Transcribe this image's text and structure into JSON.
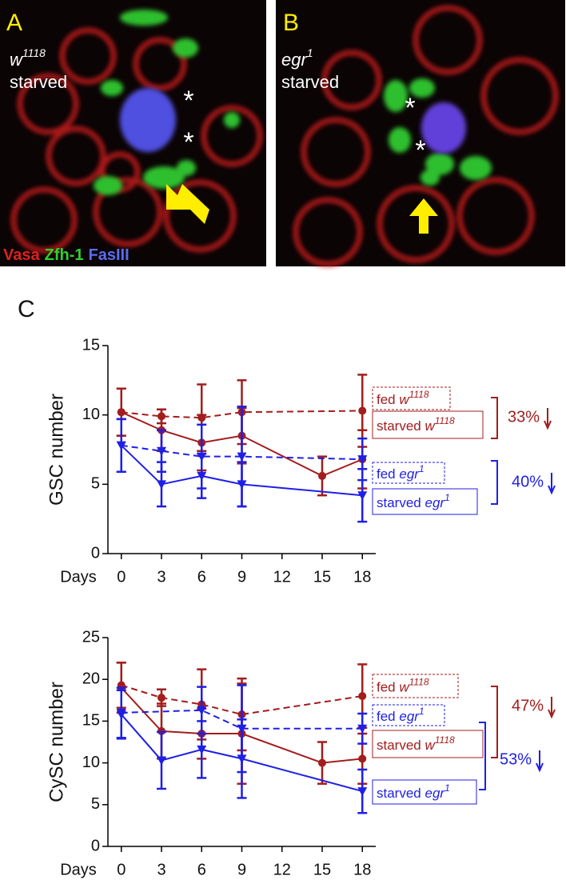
{
  "panels": [
    {
      "label": "A",
      "genotype": "w",
      "allele": "1118",
      "condition": "starved",
      "markers": [
        "Vasa",
        "Zfh-1",
        "FasIII"
      ],
      "asterisks": [
        "*",
        "*"
      ]
    },
    {
      "label": "B",
      "genotype": "egr",
      "allele": "1",
      "condition": "starved",
      "asterisks": [
        "*",
        "*"
      ]
    }
  ],
  "panel_c_label": "C",
  "chart_data": [
    {
      "type": "line",
      "y_label": "GSC number",
      "x_label": "Days",
      "xlim": [
        -1,
        19
      ],
      "xticks": [
        0,
        3,
        6,
        9,
        12,
        15,
        18
      ],
      "ylim": [
        0,
        15
      ],
      "yticks": [
        0,
        5,
        10,
        15
      ],
      "series": [
        {
          "name": [
            "fed ",
            "w",
            "1118"
          ],
          "color": "#a31d1d",
          "dashed": true,
          "marker": "circle",
          "x": [
            0,
            3,
            6,
            9,
            18
          ],
          "values": [
            10.2,
            9.9,
            9.8,
            10.2,
            10.3
          ],
          "errors": [
            1.7,
            0.5,
            2.4,
            2.3,
            2.6
          ]
        },
        {
          "name": [
            "starved ",
            "w",
            "1118"
          ],
          "color": "#a31d1d",
          "dashed": false,
          "marker": "circle",
          "x": [
            0,
            3,
            6,
            9,
            15,
            18
          ],
          "values": [
            10.2,
            8.9,
            8.0,
            8.5,
            5.6,
            6.8
          ],
          "errors": [
            1.7,
            1.5,
            2.0,
            2.0,
            1.4,
            2.1
          ]
        },
        {
          "name": [
            "fed ",
            "egr",
            "1"
          ],
          "color": "#1f1fe6",
          "dashed": true,
          "marker": "triangle",
          "x": [
            0,
            3,
            6,
            9,
            18
          ],
          "values": [
            7.8,
            7.4,
            7.0,
            7.0,
            6.8
          ],
          "errors": [
            1.9,
            1.5,
            2.3,
            3.6,
            1.5
          ]
        },
        {
          "name": [
            "starved ",
            "egr",
            "1"
          ],
          "color": "#1f1fe6",
          "dashed": false,
          "marker": "triangle",
          "x": [
            0,
            3,
            6,
            9,
            18
          ],
          "values": [
            7.8,
            5.0,
            5.6,
            5.0,
            4.2
          ],
          "errors": [
            1.9,
            1.6,
            1.6,
            1.6,
            1.9
          ]
        }
      ],
      "annotations": [
        {
          "text": "33%",
          "color": "#a31d1d"
        },
        {
          "text": "40%",
          "color": "#1f1fe6"
        }
      ]
    },
    {
      "type": "line",
      "y_label": "CySC number",
      "x_label": "Days",
      "xlim": [
        -1,
        19
      ],
      "xticks": [
        0,
        3,
        6,
        9,
        12,
        15,
        18
      ],
      "ylim": [
        0,
        25
      ],
      "yticks": [
        0,
        5,
        10,
        15,
        20,
        25
      ],
      "series": [
        {
          "name": [
            "fed ",
            "w",
            "1118"
          ],
          "color": "#a31d1d",
          "dashed": true,
          "marker": "circle",
          "x": [
            0,
            3,
            6,
            9,
            18
          ],
          "values": [
            19.3,
            17.8,
            17.0,
            15.8,
            18.0
          ],
          "errors": [
            2.7,
            1.0,
            4.2,
            4.3,
            3.8
          ]
        },
        {
          "name": [
            "starved ",
            "w",
            "1118"
          ],
          "color": "#a31d1d",
          "dashed": false,
          "marker": "circle",
          "x": [
            0,
            3,
            6,
            9,
            15,
            18
          ],
          "values": [
            19.0,
            13.8,
            13.5,
            13.5,
            10.0,
            10.5
          ],
          "errors": [
            3.0,
            3.3,
            3.0,
            6.0,
            2.5,
            3.0
          ]
        },
        {
          "name": [
            "fed ",
            "egr",
            "1"
          ],
          "color": "#1f1fe6",
          "dashed": true,
          "marker": "triangle",
          "x": [
            0,
            6,
            9,
            18
          ],
          "values": [
            16.0,
            16.3,
            14.1,
            14.1
          ],
          "errors": [
            3.0,
            2.8,
            5.2,
            1.8
          ]
        },
        {
          "name": [
            "starved ",
            "egr",
            "1"
          ],
          "color": "#1f1fe6",
          "dashed": false,
          "marker": "triangle",
          "x": [
            0,
            3,
            6,
            9,
            18
          ],
          "values": [
            15.8,
            10.3,
            11.6,
            10.5,
            6.6
          ],
          "errors": [
            2.9,
            3.4,
            3.4,
            4.7,
            2.6
          ]
        }
      ],
      "annotations": [
        {
          "text": "47%",
          "color": "#a31d1d"
        },
        {
          "text": "53%",
          "color": "#1f1fe6"
        }
      ]
    }
  ]
}
